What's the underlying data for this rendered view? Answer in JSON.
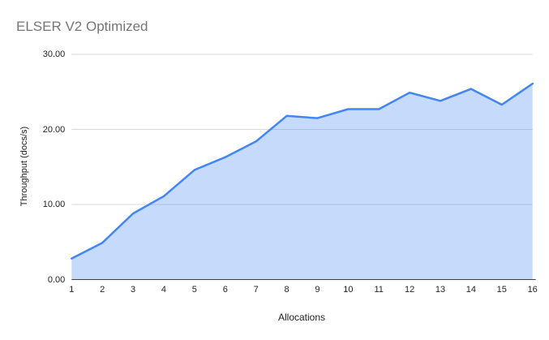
{
  "chart_data": {
    "type": "area",
    "title": "ELSER V2 Optimized",
    "xlabel": "Allocations",
    "ylabel": "Throughput (docs/s)",
    "x": [
      1,
      2,
      3,
      4,
      5,
      6,
      7,
      8,
      9,
      10,
      11,
      12,
      13,
      14,
      15,
      16
    ],
    "values": [
      2.8,
      4.9,
      8.8,
      11.1,
      14.6,
      16.3,
      18.4,
      21.8,
      21.5,
      22.7,
      22.7,
      24.9,
      23.8,
      25.4,
      23.3,
      26.1
    ],
    "xtick_labels": [
      "1",
      "2",
      "3",
      "4",
      "5",
      "6",
      "7",
      "8",
      "9",
      "10",
      "11",
      "12",
      "13",
      "14",
      "15",
      "16"
    ],
    "yticks": [
      0,
      10,
      20,
      30
    ],
    "ytick_labels": [
      "0.00",
      "10.00",
      "20.00",
      "30.00"
    ],
    "ylim": [
      0,
      30
    ],
    "grid": true,
    "legend": "none",
    "colors": {
      "line": "#4285f4",
      "fill": "rgba(66,133,244,0.3)",
      "grid": "#d9d9d9",
      "axis": "#424242",
      "title_text": "#757575",
      "tick_text": "#222222"
    }
  }
}
